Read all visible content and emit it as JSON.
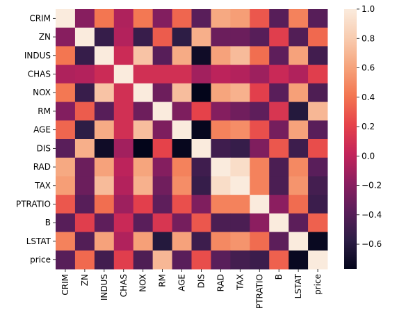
{
  "chart_data": {
    "type": "heatmap",
    "title": "",
    "xlabel": "",
    "ylabel": "",
    "labels": [
      "CRIM",
      "ZN",
      "INDUS",
      "CHAS",
      "NOX",
      "RM",
      "AGE",
      "DIS",
      "RAD",
      "TAX",
      "PTRATIO",
      "B",
      "LSTAT",
      "price"
    ],
    "matrix": [
      [
        1.0,
        -0.2,
        0.41,
        -0.06,
        0.42,
        -0.22,
        0.35,
        -0.38,
        0.63,
        0.58,
        0.29,
        -0.39,
        0.46,
        -0.39
      ],
      [
        -0.2,
        1.0,
        -0.53,
        -0.04,
        -0.52,
        0.31,
        -0.57,
        0.66,
        -0.31,
        -0.31,
        -0.39,
        0.18,
        -0.41,
        0.36
      ],
      [
        0.41,
        -0.53,
        1.0,
        0.06,
        0.76,
        -0.39,
        0.64,
        -0.71,
        0.6,
        0.72,
        0.38,
        -0.36,
        0.6,
        -0.48
      ],
      [
        -0.06,
        -0.04,
        0.06,
        1.0,
        0.09,
        0.09,
        0.09,
        -0.1,
        -0.01,
        -0.04,
        -0.12,
        0.05,
        -0.05,
        0.18
      ],
      [
        0.42,
        -0.52,
        0.76,
        0.09,
        1.0,
        -0.3,
        0.73,
        -0.77,
        0.61,
        0.67,
        0.19,
        -0.38,
        0.59,
        -0.43
      ],
      [
        -0.22,
        0.31,
        -0.39,
        0.09,
        -0.3,
        1.0,
        -0.24,
        0.21,
        -0.21,
        -0.29,
        -0.36,
        0.13,
        -0.61,
        0.7
      ],
      [
        0.35,
        -0.57,
        0.64,
        0.09,
        0.73,
        -0.24,
        1.0,
        -0.75,
        0.46,
        0.51,
        0.26,
        -0.27,
        0.6,
        -0.38
      ],
      [
        -0.38,
        0.66,
        -0.71,
        -0.1,
        -0.77,
        0.21,
        -0.75,
        1.0,
        -0.49,
        -0.53,
        -0.23,
        0.29,
        -0.5,
        0.25
      ],
      [
        0.63,
        -0.31,
        0.6,
        -0.01,
        0.61,
        -0.21,
        0.46,
        -0.49,
        1.0,
        0.91,
        0.46,
        -0.44,
        0.49,
        -0.38
      ],
      [
        0.58,
        -0.31,
        0.72,
        -0.04,
        0.67,
        -0.29,
        0.51,
        -0.53,
        0.91,
        1.0,
        0.46,
        -0.44,
        0.54,
        -0.47
      ],
      [
        0.29,
        -0.39,
        0.38,
        -0.12,
        0.19,
        -0.36,
        0.26,
        -0.23,
        0.46,
        0.46,
        1.0,
        -0.18,
        0.37,
        -0.51
      ],
      [
        -0.39,
        0.18,
        -0.36,
        0.05,
        -0.38,
        0.13,
        -0.27,
        0.29,
        -0.44,
        -0.44,
        -0.18,
        1.0,
        -0.37,
        0.33
      ],
      [
        0.46,
        -0.41,
        0.6,
        -0.05,
        0.59,
        -0.61,
        0.6,
        -0.5,
        0.49,
        0.54,
        0.37,
        -0.37,
        1.0,
        -0.74
      ],
      [
        -0.39,
        0.36,
        -0.48,
        0.18,
        -0.43,
        0.7,
        -0.38,
        0.25,
        -0.38,
        -0.47,
        -0.51,
        0.33,
        -0.74,
        1.0
      ]
    ],
    "colorbar": {
      "min": -0.77,
      "max": 1.0,
      "ticks": [
        1.0,
        0.8,
        0.6,
        0.4,
        0.2,
        0.0,
        -0.2,
        -0.4,
        -0.6
      ],
      "tick_labels": [
        "1.0",
        "0.8",
        "0.6",
        "0.4",
        "0.2",
        "0.0",
        "−0.2",
        "−0.4",
        "−0.6"
      ],
      "colormap": "rocket",
      "colormap_stops": [
        "#03051a",
        "#2c1d45",
        "#5a1e5a",
        "#8c1e60",
        "#c3245a",
        "#e6434a",
        "#f37651",
        "#f6a47c",
        "#f8ccb0",
        "#faebdd"
      ]
    }
  }
}
